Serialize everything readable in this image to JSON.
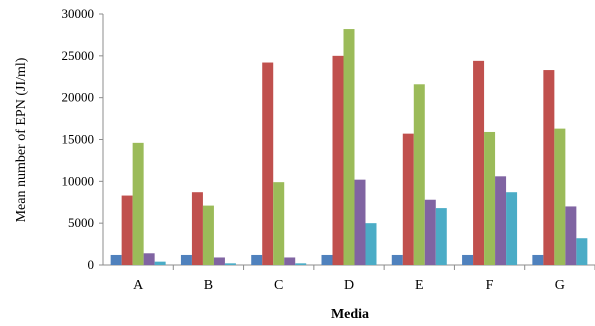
{
  "chart_data": {
    "type": "bar",
    "xlabel": "Media",
    "ylabel": "Mean number of  EPN  (JI/ml)",
    "ylim": [
      0,
      30000
    ],
    "yticks": [
      "0",
      "5000",
      "10000",
      "15000",
      "20000",
      "25000",
      "30000"
    ],
    "categories": [
      "A",
      "B",
      "C",
      "D",
      "E",
      "F",
      "G"
    ],
    "grid": false,
    "legend": "none",
    "series": [
      {
        "color": "#4F81BD",
        "values": [
          1200,
          1200,
          1200,
          1200,
          1200,
          1200,
          1200
        ]
      },
      {
        "color": "#C0504D",
        "values": [
          8300,
          8700,
          24200,
          25000,
          15700,
          24400,
          23300
        ]
      },
      {
        "color": "#9BBB59",
        "values": [
          14600,
          7100,
          9900,
          28200,
          21600,
          15900,
          16300
        ]
      },
      {
        "color": "#8064A2",
        "values": [
          1400,
          900,
          900,
          10200,
          7800,
          10600,
          7000
        ]
      },
      {
        "color": "#4BACC6",
        "values": [
          400,
          200,
          200,
          5000,
          6800,
          8700,
          3200
        ]
      }
    ]
  }
}
